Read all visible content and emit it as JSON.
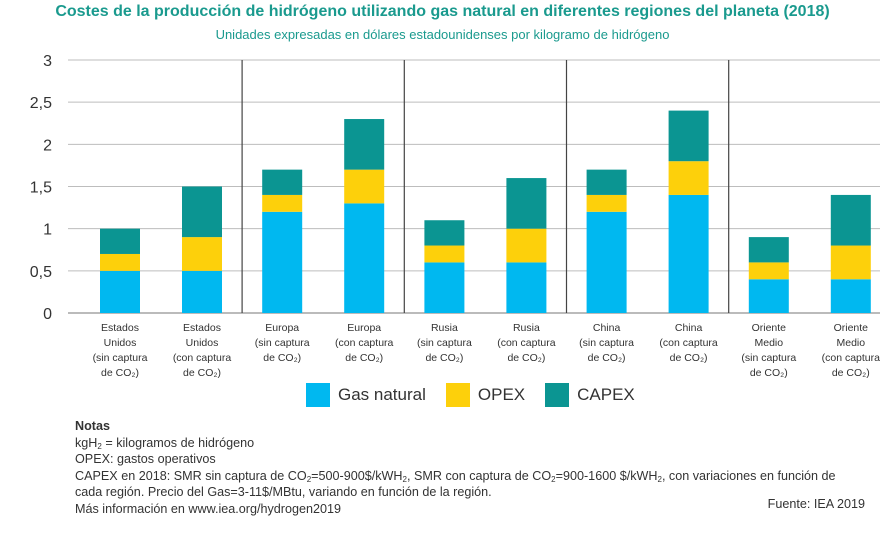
{
  "title": "Costes de la producción de hidrógeno utilizando gas natural en diferentes regiones del planeta (2018)",
  "subtitle": "Unidades expresadas en dólares estadounidenses por kilogramo de hidrógeno",
  "colors": {
    "gas_natural": "#00b8f0",
    "opex": "#fdd00b",
    "capex": "#0b9592",
    "title": "#1a9a8e"
  },
  "chart_data": {
    "type": "bar",
    "stacked": true,
    "ylim": [
      0,
      3
    ],
    "yticks": [
      "0",
      "0,5",
      "1",
      "1,5",
      "2",
      "2,5",
      "3"
    ],
    "ytick_values": [
      0,
      0.5,
      1,
      1.5,
      2,
      2.5,
      3
    ],
    "categories": [
      [
        "Estados",
        "Unidos",
        "(sin captura",
        "de CO₂)"
      ],
      [
        "Estados",
        "Unidos",
        "(con captura",
        "de CO₂)"
      ],
      [
        "Europa",
        "(sin captura",
        "de CO₂)"
      ],
      [
        "Europa",
        "(con captura",
        "de CO₂)"
      ],
      [
        "Rusia",
        "(sin captura",
        "de CO₂)"
      ],
      [
        "Rusia",
        "(con captura",
        "de CO₂)"
      ],
      [
        "China",
        "(sin captura",
        "de CO₂)"
      ],
      [
        "China",
        "(con captura",
        "de CO₂)"
      ],
      [
        "Oriente",
        "Medio",
        "(sin captura",
        "de CO₂)"
      ],
      [
        "Oriente",
        "Medio",
        "(con captura",
        "de CO₂)"
      ]
    ],
    "series": [
      {
        "name": "Gas natural",
        "values": [
          0.5,
          0.5,
          1.2,
          1.3,
          0.6,
          0.6,
          1.2,
          1.4,
          0.4,
          0.4
        ]
      },
      {
        "name": "OPEX",
        "values": [
          0.2,
          0.4,
          0.2,
          0.4,
          0.2,
          0.4,
          0.2,
          0.4,
          0.2,
          0.4
        ]
      },
      {
        "name": "CAPEX",
        "values": [
          0.3,
          0.6,
          0.3,
          0.6,
          0.3,
          0.6,
          0.3,
          0.6,
          0.3,
          0.6
        ]
      }
    ],
    "grid": true,
    "legend_position": "bottom-center"
  },
  "notes": {
    "heading": "Notas",
    "kgh2_prefix": "kgH",
    "kgh2_suffix": " = kilogramos de hidrógeno",
    "opex": "OPEX: gastos operativos",
    "capex_line1_a": "CAPEX en 2018: SMR sin captura de CO",
    "capex_line1_b": "=500-900$/kWH",
    "capex_line1_c": ", SMR con captura de CO",
    "capex_line1_d": "=900-1600 $/kWH",
    "capex_line1_e": ", con variaciones en función de",
    "capex_line2": "cada región. Precio del Gas=3-11$/MBtu, variando en función de la región.",
    "more_info": "Más información en www.iea.org/hydrogen2019",
    "sub2": "2"
  },
  "source": "Fuente: IEA 2019"
}
